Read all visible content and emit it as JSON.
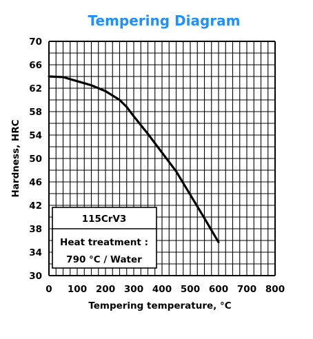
{
  "chart_data": {
    "type": "line",
    "title": "Tempering Diagram",
    "xlabel": "Tempering temperature, °C",
    "ylabel": "Hardness, HRC",
    "xlim": [
      0,
      800
    ],
    "ylim": [
      30,
      70
    ],
    "x_ticks": [
      "0",
      "100",
      "200",
      "300",
      "400",
      "500",
      "600",
      "700",
      "800"
    ],
    "y_ticks": [
      "30",
      "34",
      "38",
      "42",
      "46",
      "50",
      "54",
      "58",
      "62",
      "66",
      "70"
    ],
    "grid": true,
    "series": [
      {
        "x": [
          0,
          50,
          100,
          150,
          200,
          250,
          275,
          300,
          350,
          400,
          450,
          500,
          550,
          600
        ],
        "values": [
          64.0,
          63.9,
          63.2,
          62.5,
          61.5,
          60.0,
          58.8,
          57.2,
          54.2,
          51.0,
          47.8,
          43.8,
          39.8,
          35.7
        ]
      }
    ],
    "legend": {
      "material": "115CrV3",
      "treatment_label": "Heat treatment :",
      "treatment_value": "790 °C / Water",
      "placement": "bottom-left"
    },
    "colors": {
      "title": "#1e90ff",
      "line": "#000000",
      "grid": "#000000"
    }
  }
}
